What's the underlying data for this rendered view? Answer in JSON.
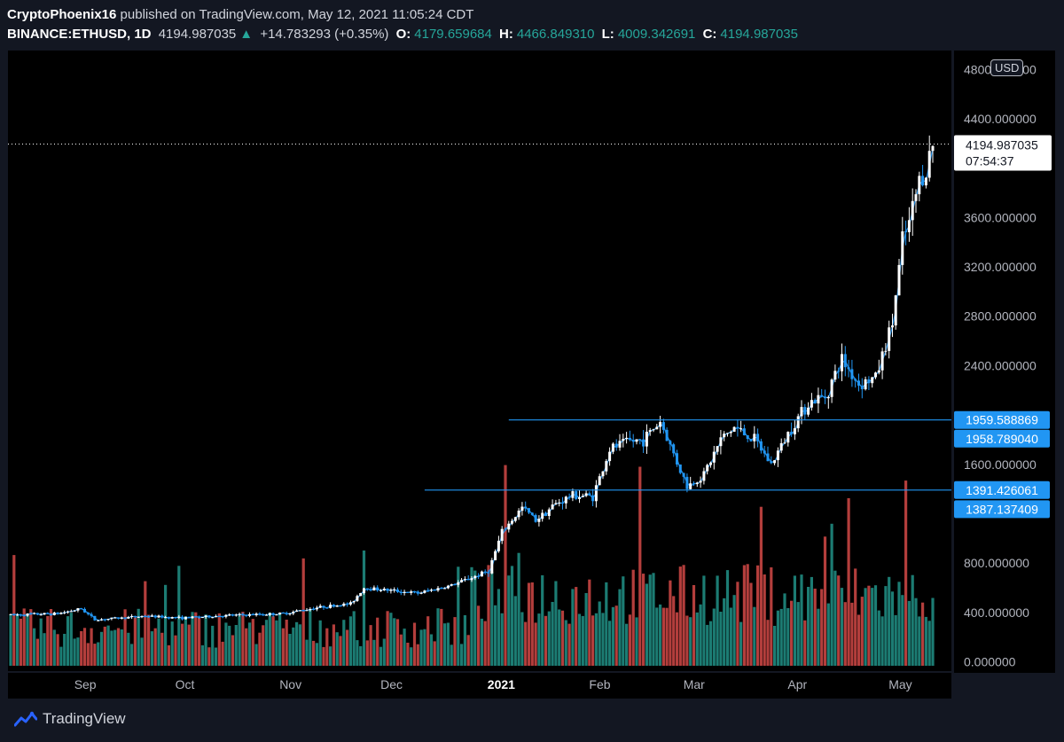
{
  "header": {
    "publisher": "CryptoPhoenix16",
    "published_text": "published on TradingView.com, May 12, 2021 11:05:24 CDT",
    "symbol": "BINANCE:ETHUSD, 1D",
    "last": "4194.987035",
    "change": "+14.783293 (+0.35%)",
    "o_label": "O:",
    "o_val": "4179.659684",
    "h_label": "H:",
    "h_val": "4466.849310",
    "l_label": "L:",
    "l_val": "4009.342691",
    "c_label": "C:",
    "c_val": "4194.987035"
  },
  "currency": "USD",
  "footer": {
    "brand": "TradingView"
  },
  "colors": {
    "bg": "#000000",
    "up": "#26a69a",
    "down": "#ef5350",
    "candle": "#2196f3",
    "line": "#2196f3"
  },
  "chart_data": {
    "type": "candlestick",
    "symbol": "ETHUSD",
    "interval": "1D",
    "ylim": [
      0,
      4800
    ],
    "y_ticks": [
      {
        "value": 0,
        "label": "0.000000"
      },
      {
        "value": 400,
        "label": "400.000000"
      },
      {
        "value": 800,
        "label": "800.000000"
      },
      {
        "value": 1600,
        "label": "1600.000000"
      },
      {
        "value": 2400,
        "label": "2400.000000"
      },
      {
        "value": 2800,
        "label": "2800.000000"
      },
      {
        "value": 3200,
        "label": "3200.000000"
      },
      {
        "value": 3600,
        "label": "3600.000000"
      },
      {
        "value": 4400,
        "label": "4400.000000"
      },
      {
        "value": 4800,
        "label": "4800.000000"
      }
    ],
    "x_ticks": [
      {
        "label": "Sep",
        "date": "2020-09-01"
      },
      {
        "label": "Oct",
        "date": "2020-10-01"
      },
      {
        "label": "Nov",
        "date": "2020-11-01"
      },
      {
        "label": "Dec",
        "date": "2020-12-01"
      },
      {
        "label": "2021",
        "date": "2021-01-01",
        "bold": true
      },
      {
        "label": "Feb",
        "date": "2021-02-01"
      },
      {
        "label": "Mar",
        "date": "2021-03-01"
      },
      {
        "label": "Apr",
        "date": "2021-04-01"
      },
      {
        "label": "May",
        "date": "2021-05-01"
      }
    ],
    "x_range": [
      "2020-08-11",
      "2021-05-12"
    ],
    "price_keypoints": [
      [
        "2020-08-11",
        380
      ],
      [
        "2020-08-25",
        390
      ],
      [
        "2020-09-01",
        430
      ],
      [
        "2020-09-05",
        340
      ],
      [
        "2020-09-20",
        370
      ],
      [
        "2020-10-01",
        355
      ],
      [
        "2020-10-15",
        375
      ],
      [
        "2020-10-31",
        390
      ],
      [
        "2020-11-10",
        440
      ],
      [
        "2020-11-20",
        470
      ],
      [
        "2020-11-24",
        600
      ],
      [
        "2020-12-01",
        580
      ],
      [
        "2020-12-10",
        555
      ],
      [
        "2020-12-20",
        620
      ],
      [
        "2020-12-31",
        735
      ],
      [
        "2021-01-04",
        1050
      ],
      [
        "2021-01-10",
        1250
      ],
      [
        "2021-01-14",
        1150
      ],
      [
        "2021-01-20",
        1280
      ],
      [
        "2021-01-25",
        1350
      ],
      [
        "2021-01-31",
        1340
      ],
      [
        "2021-02-05",
        1720
      ],
      [
        "2021-02-10",
        1780
      ],
      [
        "2021-02-15",
        1800
      ],
      [
        "2021-02-20",
        1950
      ],
      [
        "2021-02-23",
        1750
      ],
      [
        "2021-02-28",
        1420
      ],
      [
        "2021-03-05",
        1520
      ],
      [
        "2021-03-10",
        1800
      ],
      [
        "2021-03-14",
        1900
      ],
      [
        "2021-03-20",
        1800
      ],
      [
        "2021-03-25",
        1600
      ],
      [
        "2021-03-31",
        1900
      ],
      [
        "2021-04-05",
        2100
      ],
      [
        "2021-04-10",
        2150
      ],
      [
        "2021-04-15",
        2450
      ],
      [
        "2021-04-20",
        2250
      ],
      [
        "2021-04-25",
        2300
      ],
      [
        "2021-04-30",
        2750
      ],
      [
        "2021-05-03",
        3400
      ],
      [
        "2021-05-05",
        3550
      ],
      [
        "2021-05-08",
        3900
      ],
      [
        "2021-05-10",
        4000
      ],
      [
        "2021-05-12",
        4195
      ]
    ],
    "volume_scale": {
      "max": 2200
    },
    "last_price": {
      "value": 4194.987035,
      "label": "4194.987035",
      "countdown": "07:54:37"
    },
    "horizontal_levels": [
      {
        "value": 1959.588869,
        "label": "1959.588869",
        "start": "2021-01-06"
      },
      {
        "value": 1958.78904,
        "label": "1958.789040"
      },
      {
        "value": 1391.426061,
        "label": "1391.426061",
        "start": "2020-12-12"
      },
      {
        "value": 1387.137409,
        "label": "1387.137409"
      }
    ]
  }
}
